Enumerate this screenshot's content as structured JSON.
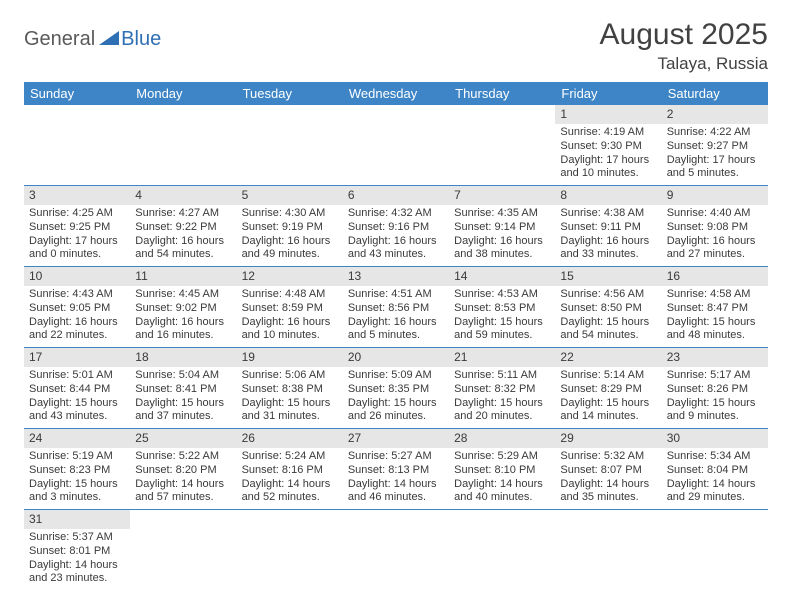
{
  "brand": {
    "part1": "General",
    "part2": "Blue"
  },
  "title": "August 2025",
  "location": "Talaya, Russia",
  "colors": {
    "header_bg": "#3d85c6",
    "header_text": "#ffffff",
    "daynum_bg": "#e6e6e6",
    "rule": "#3d85c6",
    "brand_gray": "#5a5a5a",
    "brand_blue": "#2f6fb3",
    "text": "#3a3a3a",
    "page_bg": "#ffffff"
  },
  "weekdays": [
    "Sunday",
    "Monday",
    "Tuesday",
    "Wednesday",
    "Thursday",
    "Friday",
    "Saturday"
  ],
  "weeks": [
    [
      {
        "n": null
      },
      {
        "n": null
      },
      {
        "n": null
      },
      {
        "n": null
      },
      {
        "n": null
      },
      {
        "n": "1",
        "sr": "Sunrise: 4:19 AM",
        "ss": "Sunset: 9:30 PM",
        "dl": "Daylight: 17 hours and 10 minutes."
      },
      {
        "n": "2",
        "sr": "Sunrise: 4:22 AM",
        "ss": "Sunset: 9:27 PM",
        "dl": "Daylight: 17 hours and 5 minutes."
      }
    ],
    [
      {
        "n": "3",
        "sr": "Sunrise: 4:25 AM",
        "ss": "Sunset: 9:25 PM",
        "dl": "Daylight: 17 hours and 0 minutes."
      },
      {
        "n": "4",
        "sr": "Sunrise: 4:27 AM",
        "ss": "Sunset: 9:22 PM",
        "dl": "Daylight: 16 hours and 54 minutes."
      },
      {
        "n": "5",
        "sr": "Sunrise: 4:30 AM",
        "ss": "Sunset: 9:19 PM",
        "dl": "Daylight: 16 hours and 49 minutes."
      },
      {
        "n": "6",
        "sr": "Sunrise: 4:32 AM",
        "ss": "Sunset: 9:16 PM",
        "dl": "Daylight: 16 hours and 43 minutes."
      },
      {
        "n": "7",
        "sr": "Sunrise: 4:35 AM",
        "ss": "Sunset: 9:14 PM",
        "dl": "Daylight: 16 hours and 38 minutes."
      },
      {
        "n": "8",
        "sr": "Sunrise: 4:38 AM",
        "ss": "Sunset: 9:11 PM",
        "dl": "Daylight: 16 hours and 33 minutes."
      },
      {
        "n": "9",
        "sr": "Sunrise: 4:40 AM",
        "ss": "Sunset: 9:08 PM",
        "dl": "Daylight: 16 hours and 27 minutes."
      }
    ],
    [
      {
        "n": "10",
        "sr": "Sunrise: 4:43 AM",
        "ss": "Sunset: 9:05 PM",
        "dl": "Daylight: 16 hours and 22 minutes."
      },
      {
        "n": "11",
        "sr": "Sunrise: 4:45 AM",
        "ss": "Sunset: 9:02 PM",
        "dl": "Daylight: 16 hours and 16 minutes."
      },
      {
        "n": "12",
        "sr": "Sunrise: 4:48 AM",
        "ss": "Sunset: 8:59 PM",
        "dl": "Daylight: 16 hours and 10 minutes."
      },
      {
        "n": "13",
        "sr": "Sunrise: 4:51 AM",
        "ss": "Sunset: 8:56 PM",
        "dl": "Daylight: 16 hours and 5 minutes."
      },
      {
        "n": "14",
        "sr": "Sunrise: 4:53 AM",
        "ss": "Sunset: 8:53 PM",
        "dl": "Daylight: 15 hours and 59 minutes."
      },
      {
        "n": "15",
        "sr": "Sunrise: 4:56 AM",
        "ss": "Sunset: 8:50 PM",
        "dl": "Daylight: 15 hours and 54 minutes."
      },
      {
        "n": "16",
        "sr": "Sunrise: 4:58 AM",
        "ss": "Sunset: 8:47 PM",
        "dl": "Daylight: 15 hours and 48 minutes."
      }
    ],
    [
      {
        "n": "17",
        "sr": "Sunrise: 5:01 AM",
        "ss": "Sunset: 8:44 PM",
        "dl": "Daylight: 15 hours and 43 minutes."
      },
      {
        "n": "18",
        "sr": "Sunrise: 5:04 AM",
        "ss": "Sunset: 8:41 PM",
        "dl": "Daylight: 15 hours and 37 minutes."
      },
      {
        "n": "19",
        "sr": "Sunrise: 5:06 AM",
        "ss": "Sunset: 8:38 PM",
        "dl": "Daylight: 15 hours and 31 minutes."
      },
      {
        "n": "20",
        "sr": "Sunrise: 5:09 AM",
        "ss": "Sunset: 8:35 PM",
        "dl": "Daylight: 15 hours and 26 minutes."
      },
      {
        "n": "21",
        "sr": "Sunrise: 5:11 AM",
        "ss": "Sunset: 8:32 PM",
        "dl": "Daylight: 15 hours and 20 minutes."
      },
      {
        "n": "22",
        "sr": "Sunrise: 5:14 AM",
        "ss": "Sunset: 8:29 PM",
        "dl": "Daylight: 15 hours and 14 minutes."
      },
      {
        "n": "23",
        "sr": "Sunrise: 5:17 AM",
        "ss": "Sunset: 8:26 PM",
        "dl": "Daylight: 15 hours and 9 minutes."
      }
    ],
    [
      {
        "n": "24",
        "sr": "Sunrise: 5:19 AM",
        "ss": "Sunset: 8:23 PM",
        "dl": "Daylight: 15 hours and 3 minutes."
      },
      {
        "n": "25",
        "sr": "Sunrise: 5:22 AM",
        "ss": "Sunset: 8:20 PM",
        "dl": "Daylight: 14 hours and 57 minutes."
      },
      {
        "n": "26",
        "sr": "Sunrise: 5:24 AM",
        "ss": "Sunset: 8:16 PM",
        "dl": "Daylight: 14 hours and 52 minutes."
      },
      {
        "n": "27",
        "sr": "Sunrise: 5:27 AM",
        "ss": "Sunset: 8:13 PM",
        "dl": "Daylight: 14 hours and 46 minutes."
      },
      {
        "n": "28",
        "sr": "Sunrise: 5:29 AM",
        "ss": "Sunset: 8:10 PM",
        "dl": "Daylight: 14 hours and 40 minutes."
      },
      {
        "n": "29",
        "sr": "Sunrise: 5:32 AM",
        "ss": "Sunset: 8:07 PM",
        "dl": "Daylight: 14 hours and 35 minutes."
      },
      {
        "n": "30",
        "sr": "Sunrise: 5:34 AM",
        "ss": "Sunset: 8:04 PM",
        "dl": "Daylight: 14 hours and 29 minutes."
      }
    ],
    [
      {
        "n": "31",
        "sr": "Sunrise: 5:37 AM",
        "ss": "Sunset: 8:01 PM",
        "dl": "Daylight: 14 hours and 23 minutes."
      },
      {
        "n": null
      },
      {
        "n": null
      },
      {
        "n": null
      },
      {
        "n": null
      },
      {
        "n": null
      },
      {
        "n": null
      }
    ]
  ]
}
